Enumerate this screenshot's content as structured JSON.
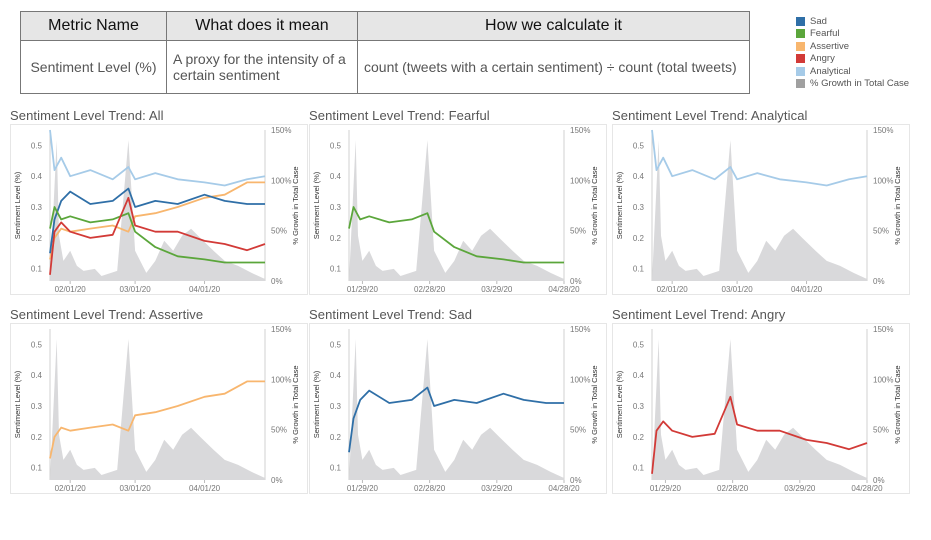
{
  "table": {
    "headers": [
      "Metric Name",
      "What does it mean",
      "How we calculate it"
    ],
    "rows": [
      [
        "Sentiment Level (%)",
        "A proxy for the intensity of a certain sentiment",
        "count (tweets with a certain sentiment) ÷ count (total tweets)"
      ]
    ]
  },
  "legend": [
    {
      "label": "Sad",
      "color": "#2f6fa7"
    },
    {
      "label": "Fearful",
      "color": "#5ba63b"
    },
    {
      "label": "Assertive",
      "color": "#f8b66e"
    },
    {
      "label": "Angry",
      "color": "#d23a37"
    },
    {
      "label": "Analytical",
      "color": "#a6cbe8"
    },
    {
      "label": "% Growth in Total Case",
      "color": "#a0a0a0"
    }
  ],
  "chart_data": [
    {
      "type": "line",
      "title": "Sentiment Level Trend: All",
      "ylabel": "Sentiment Level (%)",
      "y2label": "% Growth in Total Case",
      "ylim": [
        0.06,
        0.55
      ],
      "y2lim": [
        0,
        150
      ],
      "yticks": [
        "0.1",
        "0.2",
        "0.3",
        "0.4",
        "0.5"
      ],
      "y2ticks": [
        "0%",
        "50%",
        "100%",
        "150%"
      ],
      "x_range": [
        "01/23/20",
        "04/28/20"
      ],
      "xticks": [
        "02/01/20",
        "03/01/20",
        "04/01/20"
      ],
      "series": [
        {
          "name": "Analytical",
          "color": "#a6cbe8",
          "x": [
            "01/23/20",
            "01/25/20",
            "01/28/20",
            "02/01/20",
            "02/10/20",
            "02/20/20",
            "02/27/20",
            "03/01/20",
            "03/10/20",
            "03/20/20",
            "04/01/20",
            "04/10/20",
            "04/20/20",
            "04/28/20"
          ],
          "values": [
            0.55,
            0.42,
            0.46,
            0.4,
            0.42,
            0.39,
            0.43,
            0.39,
            0.41,
            0.39,
            0.38,
            0.37,
            0.39,
            0.4
          ]
        },
        {
          "name": "Assertive",
          "color": "#f8b66e",
          "x": [
            "01/23/20",
            "01/25/20",
            "01/28/20",
            "02/01/20",
            "02/10/20",
            "02/20/20",
            "02/27/20",
            "03/01/20",
            "03/10/20",
            "03/20/20",
            "04/01/20",
            "04/10/20",
            "04/20/20",
            "04/28/20"
          ],
          "values": [
            0.13,
            0.2,
            0.23,
            0.22,
            0.23,
            0.24,
            0.22,
            0.27,
            0.28,
            0.3,
            0.33,
            0.34,
            0.38,
            0.38
          ]
        },
        {
          "name": "Sad",
          "color": "#2f6fa7",
          "x": [
            "01/23/20",
            "01/25/20",
            "01/28/20",
            "02/01/20",
            "02/10/20",
            "02/20/20",
            "02/27/20",
            "03/01/20",
            "03/10/20",
            "03/20/20",
            "04/01/20",
            "04/10/20",
            "04/20/20",
            "04/28/20"
          ],
          "values": [
            0.15,
            0.26,
            0.32,
            0.35,
            0.31,
            0.32,
            0.36,
            0.3,
            0.32,
            0.31,
            0.34,
            0.32,
            0.31,
            0.31
          ]
        },
        {
          "name": "Fearful",
          "color": "#5ba63b",
          "x": [
            "01/23/20",
            "01/25/20",
            "01/28/20",
            "02/01/20",
            "02/10/20",
            "02/20/20",
            "02/27/20",
            "03/01/20",
            "03/10/20",
            "03/20/20",
            "04/01/20",
            "04/10/20",
            "04/20/20",
            "04/28/20"
          ],
          "values": [
            0.23,
            0.3,
            0.26,
            0.27,
            0.25,
            0.26,
            0.28,
            0.22,
            0.17,
            0.14,
            0.13,
            0.12,
            0.12,
            0.12
          ]
        },
        {
          "name": "Angry",
          "color": "#d23a37",
          "x": [
            "01/23/20",
            "01/25/20",
            "01/28/20",
            "02/01/20",
            "02/10/20",
            "02/20/20",
            "02/27/20",
            "03/01/20",
            "03/10/20",
            "03/20/20",
            "04/01/20",
            "04/10/20",
            "04/20/20",
            "04/28/20"
          ],
          "values": [
            0.08,
            0.22,
            0.25,
            0.22,
            0.2,
            0.21,
            0.33,
            0.24,
            0.22,
            0.22,
            0.19,
            0.18,
            0.16,
            0.18
          ]
        },
        {
          "name": "% Growth in Total Case",
          "axis": "right",
          "color": "#a0a0a0",
          "x": [
            "01/23/20",
            "01/26/20",
            "01/27/20",
            "01/29/20",
            "02/01/20",
            "02/04/20",
            "02/07/20",
            "02/12/20",
            "02/15/20",
            "02/22/20",
            "02/27/20",
            "03/01/20",
            "03/06/20",
            "03/10/20",
            "03/14/20",
            "03/18/20",
            "03/22/20",
            "03/26/20",
            "03/30/20",
            "04/05/20",
            "04/10/20",
            "04/16/20",
            "04/22/20",
            "04/28/20"
          ],
          "values": [
            0,
            140,
            45,
            20,
            30,
            15,
            10,
            12,
            5,
            10,
            140,
            30,
            8,
            20,
            40,
            30,
            45,
            52,
            43,
            30,
            20,
            15,
            8,
            2
          ]
        }
      ]
    },
    {
      "type": "line",
      "title": "Sentiment Level Trend: Fearful",
      "ylabel": "Sentiment Level (%)",
      "y2label": "% Growth in Total Case",
      "ylim": [
        0.06,
        0.55
      ],
      "y2lim": [
        0,
        150
      ],
      "yticks": [
        "0.1",
        "0.2",
        "0.3",
        "0.4",
        "0.5"
      ],
      "y2ticks": [
        "0%",
        "50%",
        "100%",
        "150%"
      ],
      "x_range": [
        "01/23/20",
        "04/28/20"
      ],
      "xticks": [
        "01/29/20",
        "02/28/20",
        "03/29/20",
        "04/28/20"
      ],
      "series": [
        {
          "name": "Fearful",
          "color": "#5ba63b",
          "x": [
            "01/23/20",
            "01/25/20",
            "01/28/20",
            "02/01/20",
            "02/10/20",
            "02/20/20",
            "02/27/20",
            "03/01/20",
            "03/10/20",
            "03/20/20",
            "04/01/20",
            "04/10/20",
            "04/20/20",
            "04/28/20"
          ],
          "values": [
            0.23,
            0.3,
            0.26,
            0.27,
            0.25,
            0.26,
            0.28,
            0.22,
            0.17,
            0.14,
            0.13,
            0.12,
            0.12,
            0.12
          ]
        },
        {
          "name": "% Growth in Total Case",
          "axis": "right",
          "color": "#a0a0a0",
          "x": [
            "01/23/20",
            "01/26/20",
            "01/27/20",
            "01/29/20",
            "02/01/20",
            "02/04/20",
            "02/07/20",
            "02/12/20",
            "02/15/20",
            "02/22/20",
            "02/27/20",
            "03/01/20",
            "03/06/20",
            "03/10/20",
            "03/14/20",
            "03/18/20",
            "03/22/20",
            "03/26/20",
            "03/30/20",
            "04/05/20",
            "04/10/20",
            "04/16/20",
            "04/22/20",
            "04/28/20"
          ],
          "values": [
            0,
            140,
            45,
            20,
            30,
            15,
            10,
            12,
            5,
            10,
            140,
            30,
            8,
            20,
            40,
            30,
            45,
            52,
            43,
            30,
            20,
            15,
            8,
            2
          ]
        }
      ]
    },
    {
      "type": "line",
      "title": "Sentiment Level Trend: Analytical",
      "ylabel": "Sentiment Level (%)",
      "y2label": "% Growth in Total Case",
      "ylim": [
        0.06,
        0.55
      ],
      "y2lim": [
        0,
        150
      ],
      "yticks": [
        "0.1",
        "0.2",
        "0.3",
        "0.4",
        "0.5"
      ],
      "y2ticks": [
        "0%",
        "50%",
        "100%",
        "150%"
      ],
      "x_range": [
        "01/23/20",
        "04/28/20"
      ],
      "xticks": [
        "02/01/20",
        "03/01/20",
        "04/01/20"
      ],
      "series": [
        {
          "name": "Analytical",
          "color": "#a6cbe8",
          "x": [
            "01/23/20",
            "01/25/20",
            "01/28/20",
            "02/01/20",
            "02/10/20",
            "02/20/20",
            "02/27/20",
            "03/01/20",
            "03/10/20",
            "03/20/20",
            "04/01/20",
            "04/10/20",
            "04/20/20",
            "04/28/20"
          ],
          "values": [
            0.55,
            0.42,
            0.46,
            0.4,
            0.42,
            0.39,
            0.43,
            0.39,
            0.41,
            0.39,
            0.38,
            0.37,
            0.39,
            0.4
          ]
        },
        {
          "name": "% Growth in Total Case",
          "axis": "right",
          "color": "#a0a0a0",
          "x": [
            "01/23/20",
            "01/26/20",
            "01/27/20",
            "01/29/20",
            "02/01/20",
            "02/04/20",
            "02/07/20",
            "02/12/20",
            "02/15/20",
            "02/22/20",
            "02/27/20",
            "03/01/20",
            "03/06/20",
            "03/10/20",
            "03/14/20",
            "03/18/20",
            "03/22/20",
            "03/26/20",
            "03/30/20",
            "04/05/20",
            "04/10/20",
            "04/16/20",
            "04/22/20",
            "04/28/20"
          ],
          "values": [
            0,
            140,
            45,
            20,
            30,
            15,
            10,
            12,
            5,
            10,
            140,
            30,
            8,
            20,
            40,
            30,
            45,
            52,
            43,
            30,
            20,
            15,
            8,
            2
          ]
        }
      ]
    },
    {
      "type": "line",
      "title": "Sentiment Level Trend: Assertive",
      "ylabel": "Sentiment Level (%)",
      "y2label": "% Growth in Total Case",
      "ylim": [
        0.06,
        0.55
      ],
      "y2lim": [
        0,
        150
      ],
      "yticks": [
        "0.1",
        "0.2",
        "0.3",
        "0.4",
        "0.5"
      ],
      "y2ticks": [
        "0%",
        "50%",
        "100%",
        "150%"
      ],
      "x_range": [
        "01/23/20",
        "04/28/20"
      ],
      "xticks": [
        "02/01/20",
        "03/01/20",
        "04/01/20"
      ],
      "series": [
        {
          "name": "Assertive",
          "color": "#f8b66e",
          "x": [
            "01/23/20",
            "01/25/20",
            "01/28/20",
            "02/01/20",
            "02/10/20",
            "02/20/20",
            "02/27/20",
            "03/01/20",
            "03/10/20",
            "03/20/20",
            "04/01/20",
            "04/10/20",
            "04/20/20",
            "04/28/20"
          ],
          "values": [
            0.13,
            0.2,
            0.23,
            0.22,
            0.23,
            0.24,
            0.22,
            0.27,
            0.28,
            0.3,
            0.33,
            0.34,
            0.38,
            0.38
          ]
        },
        {
          "name": "% Growth in Total Case",
          "axis": "right",
          "color": "#a0a0a0",
          "x": [
            "01/23/20",
            "01/26/20",
            "01/27/20",
            "01/29/20",
            "02/01/20",
            "02/04/20",
            "02/07/20",
            "02/12/20",
            "02/15/20",
            "02/22/20",
            "02/27/20",
            "03/01/20",
            "03/06/20",
            "03/10/20",
            "03/14/20",
            "03/18/20",
            "03/22/20",
            "03/26/20",
            "03/30/20",
            "04/05/20",
            "04/10/20",
            "04/16/20",
            "04/22/20",
            "04/28/20"
          ],
          "values": [
            0,
            140,
            45,
            20,
            30,
            15,
            10,
            12,
            5,
            10,
            140,
            30,
            8,
            20,
            40,
            30,
            45,
            52,
            43,
            30,
            20,
            15,
            8,
            2
          ]
        }
      ]
    },
    {
      "type": "line",
      "title": "Sentiment Level Trend: Sad",
      "ylabel": "Sentiment Level (%)",
      "y2label": "% Growth in Total Case",
      "ylim": [
        0.06,
        0.55
      ],
      "y2lim": [
        0,
        150
      ],
      "yticks": [
        "0.1",
        "0.2",
        "0.3",
        "0.4",
        "0.5"
      ],
      "y2ticks": [
        "0%",
        "50%",
        "100%",
        "150%"
      ],
      "x_range": [
        "01/23/20",
        "04/28/20"
      ],
      "xticks": [
        "01/29/20",
        "02/28/20",
        "03/29/20",
        "04/28/20"
      ],
      "series": [
        {
          "name": "Sad",
          "color": "#2f6fa7",
          "x": [
            "01/23/20",
            "01/25/20",
            "01/28/20",
            "02/01/20",
            "02/10/20",
            "02/20/20",
            "02/27/20",
            "03/01/20",
            "03/10/20",
            "03/20/20",
            "04/01/20",
            "04/10/20",
            "04/20/20",
            "04/28/20"
          ],
          "values": [
            0.15,
            0.26,
            0.32,
            0.35,
            0.31,
            0.32,
            0.36,
            0.3,
            0.32,
            0.31,
            0.34,
            0.32,
            0.31,
            0.31
          ]
        },
        {
          "name": "% Growth in Total Case",
          "axis": "right",
          "color": "#a0a0a0",
          "x": [
            "01/23/20",
            "01/26/20",
            "01/27/20",
            "01/29/20",
            "02/01/20",
            "02/04/20",
            "02/07/20",
            "02/12/20",
            "02/15/20",
            "02/22/20",
            "02/27/20",
            "03/01/20",
            "03/06/20",
            "03/10/20",
            "03/14/20",
            "03/18/20",
            "03/22/20",
            "03/26/20",
            "03/30/20",
            "04/05/20",
            "04/10/20",
            "04/16/20",
            "04/22/20",
            "04/28/20"
          ],
          "values": [
            0,
            140,
            45,
            20,
            30,
            15,
            10,
            12,
            5,
            10,
            140,
            30,
            8,
            20,
            40,
            30,
            45,
            52,
            43,
            30,
            20,
            15,
            8,
            2
          ]
        }
      ]
    },
    {
      "type": "line",
      "title": "Sentiment Level Trend: Angry",
      "ylabel": "Sentiment Level (%)",
      "y2label": "% Growth in Total Case",
      "ylim": [
        0.06,
        0.55
      ],
      "y2lim": [
        0,
        150
      ],
      "yticks": [
        "0.1",
        "0.2",
        "0.3",
        "0.4",
        "0.5"
      ],
      "y2ticks": [
        "0%",
        "50%",
        "100%",
        "150%"
      ],
      "x_range": [
        "01/23/20",
        "04/28/20"
      ],
      "xticks": [
        "01/29/20",
        "02/28/20",
        "03/29/20",
        "04/28/20"
      ],
      "series": [
        {
          "name": "Angry",
          "color": "#d23a37",
          "x": [
            "01/23/20",
            "01/25/20",
            "01/28/20",
            "02/01/20",
            "02/10/20",
            "02/20/20",
            "02/27/20",
            "03/01/20",
            "03/10/20",
            "03/20/20",
            "04/01/20",
            "04/10/20",
            "04/20/20",
            "04/28/20"
          ],
          "values": [
            0.08,
            0.22,
            0.25,
            0.22,
            0.2,
            0.21,
            0.33,
            0.24,
            0.22,
            0.22,
            0.19,
            0.18,
            0.16,
            0.18
          ]
        },
        {
          "name": "% Growth in Total Case",
          "axis": "right",
          "color": "#a0a0a0",
          "x": [
            "01/23/20",
            "01/26/20",
            "01/27/20",
            "01/29/20",
            "02/01/20",
            "02/04/20",
            "02/07/20",
            "02/12/20",
            "02/15/20",
            "02/22/20",
            "02/27/20",
            "03/01/20",
            "03/06/20",
            "03/10/20",
            "03/14/20",
            "03/18/20",
            "03/22/20",
            "03/26/20",
            "03/30/20",
            "04/05/20",
            "04/10/20",
            "04/16/20",
            "04/22/20",
            "04/28/20"
          ],
          "values": [
            0,
            140,
            45,
            20,
            30,
            15,
            10,
            12,
            5,
            10,
            140,
            30,
            8,
            20,
            40,
            30,
            45,
            52,
            43,
            30,
            20,
            15,
            8,
            2
          ]
        }
      ]
    }
  ]
}
